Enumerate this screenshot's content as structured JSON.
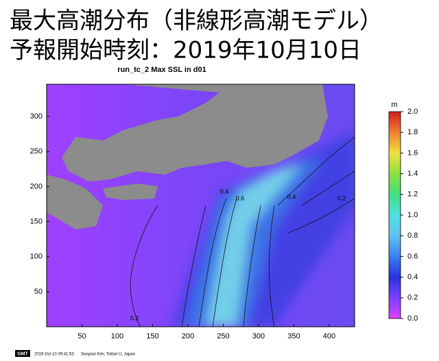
{
  "title": [
    "最大高潮分布（非線形高潮モデル）",
    "予報開始時刻：2019年10月10日"
  ],
  "chart_data": {
    "type": "map",
    "title": "run_tc_2 Max SSL in d01",
    "xlim": [
      0,
      436
    ],
    "ylim": [
      0,
      346
    ],
    "xticks": [
      50,
      100,
      150,
      200,
      250,
      300,
      350,
      400
    ],
    "yticks": [
      50,
      100,
      150,
      200,
      250,
      300
    ],
    "colorbar": {
      "label": "m",
      "lim": [
        0,
        2
      ],
      "ticks": [
        {
          "value": 0,
          "label": "0.0"
        },
        {
          "value": 0.2,
          "label": "0.2"
        },
        {
          "value": 0.4,
          "label": "0.4"
        },
        {
          "value": 0.6,
          "label": "0.6"
        },
        {
          "value": 0.8,
          "label": "0.8"
        },
        {
          "value": 1,
          "label": "1.0"
        },
        {
          "value": 1.2,
          "label": "1.2"
        },
        {
          "value": 1.4,
          "label": "1.4"
        },
        {
          "value": 1.6,
          "label": "1.6"
        },
        {
          "value": 1.8,
          "label": "1.8"
        },
        {
          "value": 2,
          "label": "2.0"
        }
      ]
    },
    "contour_labels": [
      "0.2",
      "0.4",
      "0.6",
      "0.4",
      "0.2"
    ]
  },
  "footer": {
    "logo": "GMT",
    "timestamp": "2019 Oct 10 09:41:53",
    "credit": "Sooyoul Kim, Tottori U, Japan"
  }
}
